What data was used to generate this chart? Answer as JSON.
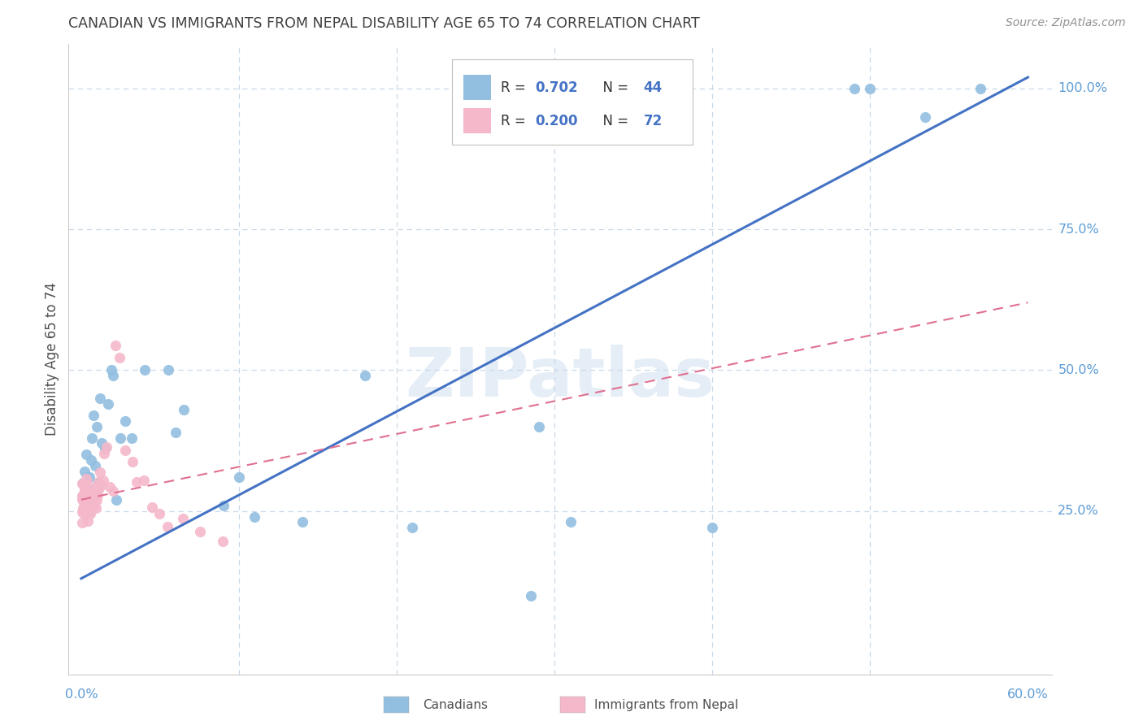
{
  "title": "CANADIAN VS IMMIGRANTS FROM NEPAL DISABILITY AGE 65 TO 74 CORRELATION CHART",
  "source": "Source: ZipAtlas.com",
  "ylabel": "Disability Age 65 to 74",
  "watermark": "ZIPatlas",
  "blue_color": "#92bfe0",
  "pink_color": "#f5b8ca",
  "line_blue": "#4472c4",
  "line_pink": "#e07090",
  "title_color": "#404040",
  "tick_color": "#5b9bd5",
  "grid_color": "#c8d8e8",
  "xmin": 0.0,
  "xmax": 0.6,
  "ymin": 0.0,
  "ymax": 1.05,
  "blue_line_x0": 0.0,
  "blue_line_x1": 0.6,
  "blue_line_y0": 0.13,
  "blue_line_y1": 1.02,
  "pink_line_x0": 0.0,
  "pink_line_x1": 0.6,
  "pink_line_y0": 0.27,
  "pink_line_y1": 0.62,
  "canadians_x": [
    0.001,
    0.001,
    0.002,
    0.002,
    0.003,
    0.003,
    0.004,
    0.005,
    0.005,
    0.006,
    0.007,
    0.007,
    0.008,
    0.009,
    0.01,
    0.011,
    0.012,
    0.013,
    0.015,
    0.017,
    0.019,
    0.02,
    0.022,
    0.025,
    0.028,
    0.032,
    0.04,
    0.055,
    0.06,
    0.065,
    0.09,
    0.1,
    0.11,
    0.14,
    0.18,
    0.21,
    0.29,
    0.31,
    0.4,
    0.49,
    0.5,
    0.535,
    0.57,
    0.285
  ],
  "canadians_y": [
    0.27,
    0.3,
    0.28,
    0.32,
    0.26,
    0.35,
    0.29,
    0.31,
    0.25,
    0.34,
    0.38,
    0.27,
    0.42,
    0.33,
    0.4,
    0.3,
    0.45,
    0.37,
    0.36,
    0.44,
    0.5,
    0.49,
    0.27,
    0.38,
    0.41,
    0.38,
    0.5,
    0.5,
    0.39,
    0.43,
    0.26,
    0.31,
    0.24,
    0.23,
    0.49,
    0.22,
    0.4,
    0.23,
    0.22,
    1.0,
    1.0,
    0.95,
    1.0,
    0.1
  ],
  "nepal_x": [
    0.0003,
    0.0005,
    0.0006,
    0.0007,
    0.0008,
    0.0009,
    0.001,
    0.001,
    0.0012,
    0.0013,
    0.0014,
    0.0015,
    0.0016,
    0.0017,
    0.0018,
    0.002,
    0.002,
    0.002,
    0.0022,
    0.0023,
    0.0024,
    0.0025,
    0.0026,
    0.0027,
    0.003,
    0.003,
    0.003,
    0.0032,
    0.0035,
    0.004,
    0.004,
    0.004,
    0.0042,
    0.0045,
    0.005,
    0.005,
    0.0052,
    0.0055,
    0.006,
    0.006,
    0.006,
    0.0065,
    0.007,
    0.007,
    0.0072,
    0.008,
    0.008,
    0.009,
    0.009,
    0.01,
    0.01,
    0.011,
    0.011,
    0.012,
    0.013,
    0.014,
    0.015,
    0.016,
    0.018,
    0.02,
    0.022,
    0.025,
    0.028,
    0.032,
    0.035,
    0.04,
    0.045,
    0.05,
    0.055,
    0.065,
    0.075,
    0.09
  ],
  "nepal_y": [
    0.27,
    0.26,
    0.28,
    0.25,
    0.27,
    0.26,
    0.28,
    0.25,
    0.27,
    0.26,
    0.25,
    0.28,
    0.27,
    0.26,
    0.25,
    0.28,
    0.27,
    0.26,
    0.27,
    0.26,
    0.25,
    0.28,
    0.27,
    0.26,
    0.28,
    0.27,
    0.26,
    0.25,
    0.28,
    0.27,
    0.26,
    0.25,
    0.28,
    0.27,
    0.28,
    0.27,
    0.26,
    0.25,
    0.28,
    0.27,
    0.26,
    0.27,
    0.28,
    0.27,
    0.26,
    0.28,
    0.27,
    0.27,
    0.26,
    0.28,
    0.27,
    0.3,
    0.29,
    0.31,
    0.29,
    0.3,
    0.34,
    0.36,
    0.3,
    0.29,
    0.55,
    0.52,
    0.37,
    0.36,
    0.3,
    0.32,
    0.28,
    0.24,
    0.23,
    0.23,
    0.22,
    0.21
  ],
  "ytick_vals": [
    0.25,
    0.5,
    0.75,
    1.0
  ],
  "ytick_labels": [
    "25.0%",
    "50.0%",
    "75.0%",
    "100.0%"
  ],
  "xtick_vals": [
    0.0,
    0.6
  ],
  "xtick_labels": [
    "0.0%",
    "60.0%"
  ]
}
